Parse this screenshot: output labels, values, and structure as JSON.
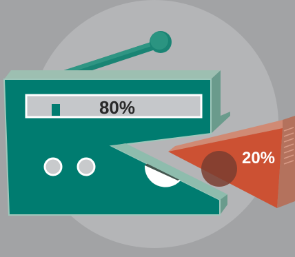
{
  "graphic": {
    "main_percent": "80%",
    "slice_percent": "20%",
    "main_share": 80,
    "slice_share": 20
  },
  "icons": {
    "radio": "radio-icon",
    "antenna": "antenna-icon",
    "knob": "knob-icon",
    "slice": "pie-slice-icon"
  },
  "colors": {
    "background": "#a2a3a5",
    "circle": "#b4b5b7",
    "radio_body": "#007c70",
    "radio_side": "#6a9b8c",
    "radio_top": "#9dbfb1",
    "slice_face": "#cc5133",
    "slice_side": "#b4725d",
    "slice_top": "#d08a74",
    "text_dark": "#2a2a2a",
    "text_light": "#ffffff"
  }
}
